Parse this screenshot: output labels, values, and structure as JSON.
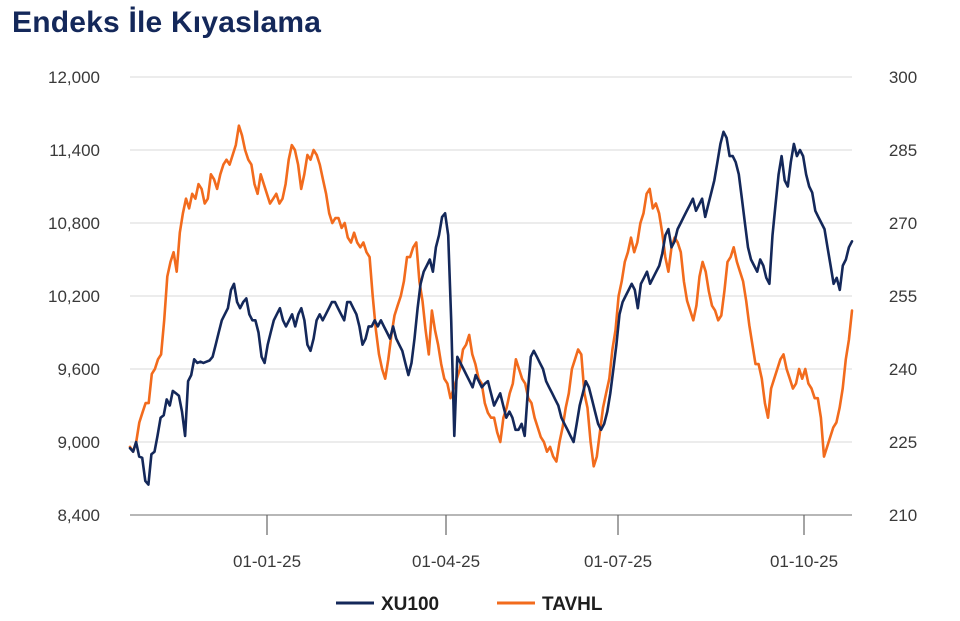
{
  "page": {
    "title": "Endeks İle Kıyaslama"
  },
  "chart_data": {
    "type": "line",
    "title": "Endeks İle Kıyaslama",
    "grid": true,
    "legend_position": "bottom-center",
    "y_left": {
      "ticks": [
        "8,400",
        "9,000",
        "9,600",
        "10,200",
        "10,800",
        "11,400",
        "12,000"
      ],
      "range": [
        8400,
        12000
      ]
    },
    "y_right": {
      "ticks": [
        "210",
        "225",
        "240",
        "255",
        "270",
        "285",
        "300"
      ],
      "range": [
        210,
        300
      ]
    },
    "x_ticks": [
      "01-01-25",
      "01-04-25",
      "01-07-25",
      "01-10-25"
    ],
    "colors": {
      "XU100": "#14285a",
      "TAVHL": "#f26b1d"
    },
    "series": [
      {
        "name": "XU100",
        "axis": "left",
        "color": "#14285a",
        "values": [
          8950,
          8920,
          9000,
          8880,
          8870,
          8680,
          8650,
          8900,
          8920,
          9050,
          9200,
          9220,
          9350,
          9300,
          9420,
          9400,
          9380,
          9250,
          9050,
          9500,
          9550,
          9680,
          9650,
          9660,
          9650,
          9660,
          9670,
          9700,
          9800,
          9900,
          10000,
          10050,
          10100,
          10250,
          10300,
          10150,
          10100,
          10150,
          10180,
          10050,
          10000,
          10000,
          9900,
          9700,
          9650,
          9800,
          9900,
          10000,
          10050,
          10100,
          10000,
          9950,
          10000,
          10050,
          9950,
          10050,
          10100,
          10000,
          9800,
          9750,
          9850,
          10000,
          10050,
          10000,
          10050,
          10100,
          10150,
          10150,
          10100,
          10050,
          10000,
          10150,
          10150,
          10100,
          10050,
          9950,
          9800,
          9850,
          9950,
          9950,
          10000,
          9950,
          10000,
          9950,
          9900,
          9850,
          9950,
          9850,
          9800,
          9750,
          9650,
          9550,
          9650,
          9850,
          10100,
          10300,
          10400,
          10450,
          10500,
          10400,
          10600,
          10700,
          10850,
          10880,
          10700,
          10000,
          9050,
          9700,
          9650,
          9600,
          9550,
          9500,
          9450,
          9550,
          9500,
          9450,
          9480,
          9500,
          9400,
          9300,
          9350,
          9400,
          9300,
          9200,
          9250,
          9200,
          9100,
          9100,
          9150,
          9050,
          9400,
          9700,
          9750,
          9700,
          9650,
          9600,
          9500,
          9450,
          9400,
          9350,
          9300,
          9200,
          9150,
          9100,
          9050,
          9000,
          9150,
          9300,
          9400,
          9500,
          9450,
          9350,
          9250,
          9150,
          9100,
          9150,
          9250,
          9400,
          9600,
          9800,
          10050,
          10150,
          10200,
          10250,
          10300,
          10250,
          10100,
          10300,
          10350,
          10400,
          10300,
          10350,
          10400,
          10450,
          10550,
          10700,
          10750,
          10600,
          10650,
          10750,
          10800,
          10850,
          10900,
          10950,
          11000,
          10900,
          10950,
          11000,
          10850,
          10950,
          11050,
          11150,
          11300,
          11450,
          11550,
          11500,
          11350,
          11350,
          11300,
          11200,
          11000,
          10800,
          10600,
          10500,
          10450,
          10400,
          10500,
          10450,
          10350,
          10300,
          10700,
          10950,
          11200,
          11350,
          11150,
          11100,
          11300,
          11450,
          11350,
          11400,
          11350,
          11200,
          11100,
          11050,
          10900,
          10850,
          10800,
          10750,
          10600,
          10450,
          10300,
          10350,
          10250,
          10450,
          10500,
          10600,
          10650
        ]
      },
      {
        "name": "TAVHL",
        "axis": "right",
        "color": "#f26b1d",
        "values": [
          224,
          223,
          225,
          229,
          231,
          233,
          233,
          239,
          240,
          242,
          243,
          250,
          259,
          262,
          264,
          260,
          268,
          272,
          275,
          273,
          276,
          275,
          278,
          277,
          274,
          275,
          280,
          279,
          277,
          280,
          282,
          283,
          282,
          284,
          286,
          290,
          288,
          285,
          283,
          282,
          278,
          276,
          280,
          278,
          276,
          274,
          275,
          276,
          274,
          275,
          278,
          283,
          286,
          285,
          282,
          277,
          280,
          284,
          283,
          285,
          284,
          282,
          279,
          276,
          272,
          270,
          271,
          271,
          269,
          270,
          267,
          266,
          268,
          266,
          265,
          266,
          264,
          263,
          255,
          248,
          243,
          240,
          238,
          242,
          247,
          251,
          253,
          255,
          258,
          263,
          263,
          265,
          266,
          258,
          254,
          248,
          243,
          252,
          248,
          245,
          241,
          238,
          237,
          234,
          236,
          238,
          240,
          244,
          245,
          247,
          243,
          241,
          238,
          237,
          233,
          231,
          230,
          230,
          227,
          225,
          230,
          232,
          235,
          237,
          242,
          240,
          238,
          237,
          234,
          233,
          230,
          228,
          226,
          225,
          223,
          224,
          222,
          221,
          225,
          228,
          232,
          235,
          240,
          242,
          244,
          243,
          235,
          232,
          225,
          220,
          222,
          227,
          232,
          235,
          238,
          244,
          248,
          255,
          258,
          262,
          264,
          267,
          264,
          266,
          270,
          272,
          276,
          277,
          273,
          274,
          272,
          268,
          263,
          260,
          265,
          267,
          266,
          264,
          258,
          254,
          252,
          250,
          253,
          259,
          262,
          260,
          256,
          253,
          252,
          250,
          251,
          256,
          262,
          263,
          265,
          262,
          260,
          258,
          254,
          249,
          245,
          241,
          241,
          238,
          233,
          230,
          236,
          238,
          240,
          242,
          243,
          240,
          238,
          236,
          237,
          240,
          238,
          240,
          237,
          236,
          234,
          234,
          230,
          222,
          224,
          226,
          228,
          229,
          232,
          236,
          242,
          246,
          252
        ]
      }
    ]
  },
  "legend": {
    "items": [
      "XU100",
      "TAVHL"
    ]
  }
}
